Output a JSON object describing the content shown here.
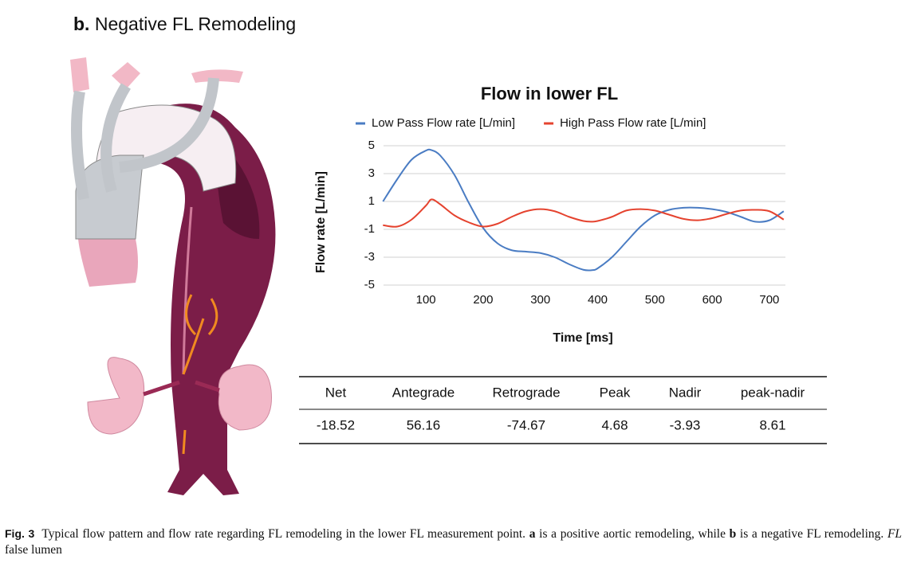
{
  "panel": {
    "letter": "b.",
    "title": "Negative FL Remodeling"
  },
  "chart_data": {
    "type": "line",
    "title": "Flow in lower FL",
    "x_label": "Time [ms]",
    "y_label": "Flow rate [L/min]",
    "x": [
      25,
      50,
      75,
      100,
      110,
      125,
      150,
      175,
      200,
      225,
      250,
      275,
      300,
      325,
      350,
      375,
      390,
      400,
      425,
      450,
      475,
      500,
      525,
      550,
      575,
      600,
      625,
      650,
      675,
      700,
      725
    ],
    "series": [
      {
        "name": "Low Pass Flow rate [L/min]",
        "color": "#4a7cc3",
        "values": [
          1.0,
          2.6,
          4.0,
          4.65,
          4.68,
          4.3,
          2.9,
          0.9,
          -0.9,
          -2.0,
          -2.5,
          -2.6,
          -2.7,
          -3.0,
          -3.5,
          -3.9,
          -3.93,
          -3.8,
          -3.0,
          -1.9,
          -0.8,
          0.0,
          0.4,
          0.55,
          0.55,
          0.45,
          0.25,
          -0.1,
          -0.45,
          -0.35,
          0.3
        ]
      },
      {
        "name": "High Pass Flow rate [L/min]",
        "color": "#e5432f",
        "values": [
          -0.7,
          -0.8,
          -0.3,
          0.7,
          1.15,
          0.8,
          0.0,
          -0.5,
          -0.8,
          -0.6,
          -0.1,
          0.3,
          0.45,
          0.3,
          -0.1,
          -0.4,
          -0.45,
          -0.4,
          -0.1,
          0.35,
          0.45,
          0.35,
          0.05,
          -0.25,
          -0.35,
          -0.2,
          0.1,
          0.35,
          0.4,
          0.3,
          -0.3
        ]
      }
    ],
    "xlim": [
      26,
      728
    ],
    "xticks": [
      100,
      200,
      300,
      400,
      500,
      600,
      700
    ],
    "ylim": [
      -5,
      5
    ],
    "yticks": [
      5,
      3,
      1,
      -1,
      -3,
      -5
    ],
    "grid": true,
    "legend": "top"
  },
  "table": {
    "header": [
      "Net",
      "Antegrade",
      "Retrograde",
      "Peak",
      "Nadir",
      "peak-nadir"
    ],
    "rows": [
      [
        -18.52,
        56.16,
        -74.67,
        4.68,
        -3.93,
        8.61
      ]
    ]
  },
  "caption": {
    "label": "Fig. 3",
    "text_1": "Typical flow pattern and flow rate regarding FL remodeling in the lower FL measurement point.",
    "a": "a",
    "text_2": "is a positive aortic remodeling, while",
    "b": "b",
    "text_3": "is a negative FL remodeling.",
    "fl": "FL",
    "text_4": "false lumen"
  }
}
